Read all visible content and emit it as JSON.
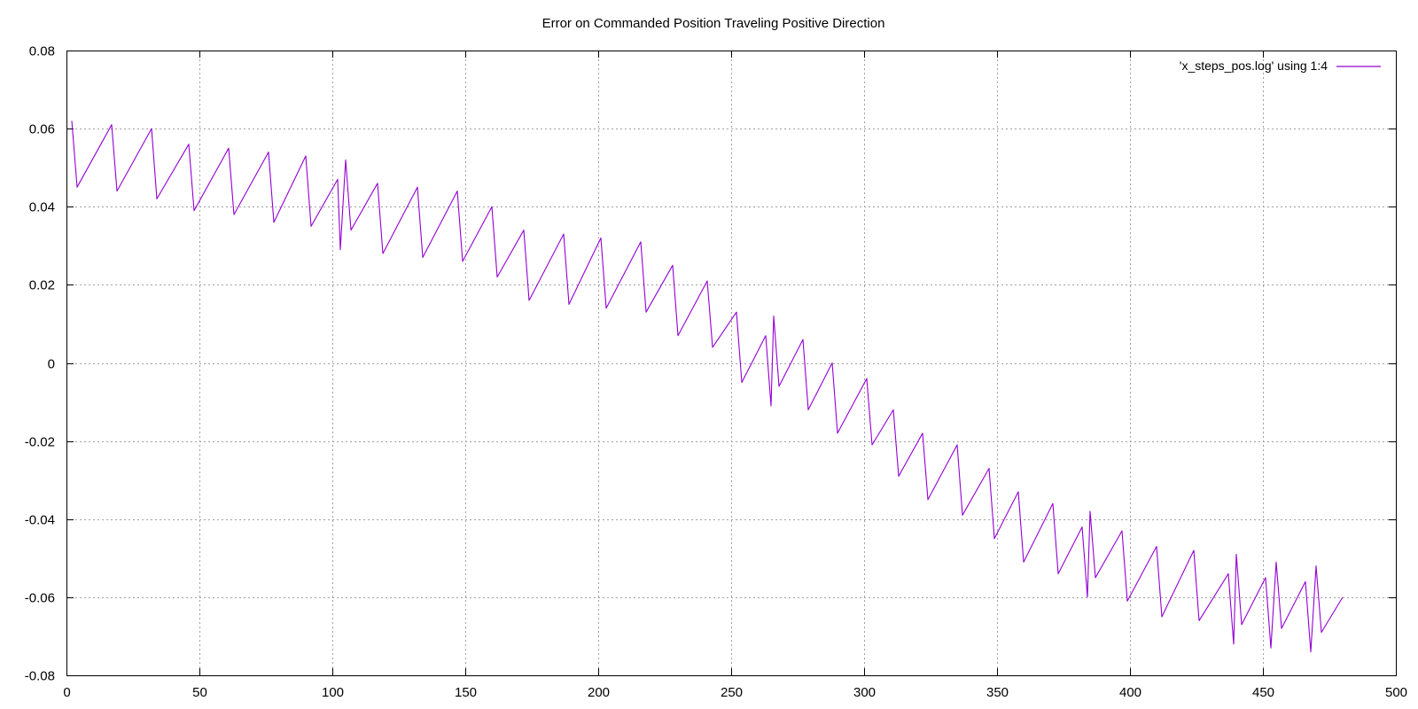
{
  "chart_data": {
    "type": "line",
    "title": "Error on Commanded Position Traveling Positive Direction",
    "xlabel": "",
    "ylabel": "",
    "xlim": [
      0,
      500
    ],
    "ylim": [
      -0.08,
      0.08
    ],
    "x_ticks": [
      0,
      50,
      100,
      150,
      200,
      250,
      300,
      350,
      400,
      450,
      500
    ],
    "y_ticks": [
      -0.08,
      -0.06,
      -0.04,
      -0.02,
      0,
      0.02,
      0.04,
      0.06,
      0.08
    ],
    "y_tick_labels": [
      "-0.08",
      "-0.06",
      "-0.04",
      "-0.02",
      "0",
      "0.02",
      "0.04",
      "0.06",
      "0.08"
    ],
    "grid": true,
    "legend_position": "top-right",
    "series": [
      {
        "name": "'x_steps_pos.log' using 1:4",
        "color": "#9400d3",
        "points": [
          [
            2,
            0.062
          ],
          [
            4,
            0.045
          ],
          [
            17,
            0.061
          ],
          [
            19,
            0.044
          ],
          [
            32,
            0.06
          ],
          [
            34,
            0.042
          ],
          [
            46,
            0.056
          ],
          [
            48,
            0.039
          ],
          [
            61,
            0.055
          ],
          [
            63,
            0.038
          ],
          [
            76,
            0.054
          ],
          [
            78,
            0.036
          ],
          [
            90,
            0.053
          ],
          [
            92,
            0.035
          ],
          [
            102,
            0.047
          ],
          [
            103,
            0.029
          ],
          [
            105,
            0.052
          ],
          [
            107,
            0.034
          ],
          [
            117,
            0.046
          ],
          [
            119,
            0.028
          ],
          [
            132,
            0.045
          ],
          [
            134,
            0.027
          ],
          [
            147,
            0.044
          ],
          [
            149,
            0.026
          ],
          [
            160,
            0.04
          ],
          [
            162,
            0.022
          ],
          [
            172,
            0.034
          ],
          [
            174,
            0.016
          ],
          [
            187,
            0.033
          ],
          [
            189,
            0.015
          ],
          [
            201,
            0.032
          ],
          [
            203,
            0.014
          ],
          [
            216,
            0.031
          ],
          [
            218,
            0.013
          ],
          [
            228,
            0.025
          ],
          [
            230,
            0.007
          ],
          [
            241,
            0.021
          ],
          [
            243,
            0.004
          ],
          [
            252,
            0.013
          ],
          [
            254,
            -0.005
          ],
          [
            263,
            0.007
          ],
          [
            265,
            -0.011
          ],
          [
            266,
            0.012
          ],
          [
            268,
            -0.006
          ],
          [
            277,
            0.006
          ],
          [
            279,
            -0.012
          ],
          [
            288,
            0.0
          ],
          [
            290,
            -0.018
          ],
          [
            301,
            -0.004
          ],
          [
            303,
            -0.021
          ],
          [
            311,
            -0.012
          ],
          [
            313,
            -0.029
          ],
          [
            322,
            -0.018
          ],
          [
            324,
            -0.035
          ],
          [
            335,
            -0.021
          ],
          [
            337,
            -0.039
          ],
          [
            347,
            -0.027
          ],
          [
            349,
            -0.045
          ],
          [
            358,
            -0.033
          ],
          [
            360,
            -0.051
          ],
          [
            371,
            -0.036
          ],
          [
            373,
            -0.054
          ],
          [
            382,
            -0.042
          ],
          [
            384,
            -0.06
          ],
          [
            385,
            -0.038
          ],
          [
            387,
            -0.055
          ],
          [
            397,
            -0.043
          ],
          [
            399,
            -0.061
          ],
          [
            410,
            -0.047
          ],
          [
            412,
            -0.065
          ],
          [
            424,
            -0.048
          ],
          [
            426,
            -0.066
          ],
          [
            437,
            -0.054
          ],
          [
            439,
            -0.072
          ],
          [
            440,
            -0.049
          ],
          [
            442,
            -0.067
          ],
          [
            451,
            -0.055
          ],
          [
            453,
            -0.073
          ],
          [
            455,
            -0.051
          ],
          [
            457,
            -0.068
          ],
          [
            466,
            -0.056
          ],
          [
            468,
            -0.074
          ],
          [
            470,
            -0.052
          ],
          [
            472,
            -0.069
          ],
          [
            480,
            -0.06
          ]
        ]
      }
    ]
  }
}
